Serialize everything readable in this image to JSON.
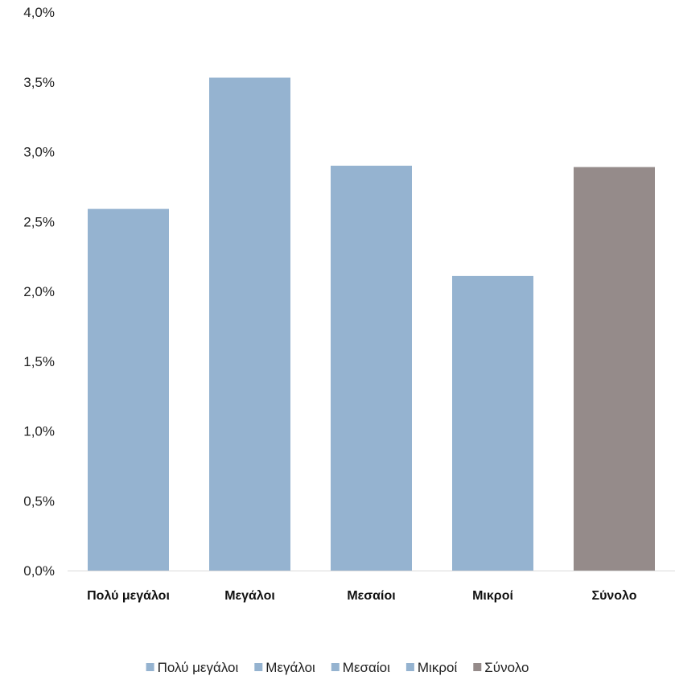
{
  "chart_data": {
    "type": "bar",
    "categories": [
      "Πολύ μεγάλοι",
      "Μεγάλοι",
      "Μεσαίοι",
      "Μικροί",
      "Σύνολο"
    ],
    "values": [
      2.59,
      3.53,
      2.9,
      2.11,
      2.89
    ],
    "unit": "%",
    "ylim": [
      0,
      4.0
    ],
    "yticks": [
      "0,0%",
      "0,5%",
      "1,0%",
      "1,5%",
      "2,0%",
      "2,5%",
      "3,0%",
      "3,5%",
      "4,0%"
    ],
    "grid": false,
    "legend_position": "bottom",
    "legend": [
      {
        "label": "Πολύ μεγάλοι",
        "color": "#95b3d0"
      },
      {
        "label": "Μεγάλοι",
        "color": "#95b3d0"
      },
      {
        "label": "Μεσαίοι",
        "color": "#95b3d0"
      },
      {
        "label": "Μικροί",
        "color": "#95b3d0"
      },
      {
        "label": "Σύνολο",
        "color": "#958b8a"
      }
    ],
    "bar_colors": [
      "#95b3d0",
      "#95b3d0",
      "#95b3d0",
      "#95b3d0",
      "#958b8a"
    ],
    "axis_color": "#d9d9d9"
  }
}
